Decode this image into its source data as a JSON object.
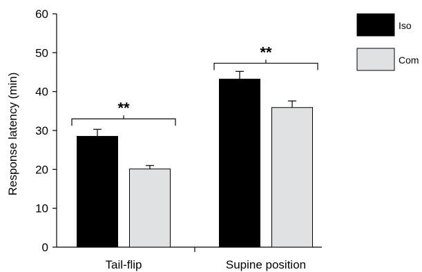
{
  "chart_data": {
    "type": "bar",
    "title": "",
    "xlabel": "",
    "ylabel": "Response latency (min)",
    "ylim": [
      0,
      60
    ],
    "yticks": [
      0,
      10,
      20,
      30,
      40,
      50,
      60
    ],
    "categories": [
      "Tail-flip",
      "Supine position"
    ],
    "series": [
      {
        "name": "Iso",
        "values": [
          28.5,
          43.2
        ],
        "errors": [
          1.8,
          2.0
        ],
        "color": "#000000"
      },
      {
        "name": "Com",
        "values": [
          20.1,
          35.9
        ],
        "errors": [
          0.9,
          1.7
        ],
        "color": "#e0e1e3"
      }
    ],
    "annotations": [
      {
        "category": "Tail-flip",
        "text": "**",
        "y": 33
      },
      {
        "category": "Supine position",
        "text": "**",
        "y": 47.3
      }
    ],
    "legend": "top-right",
    "grid": false
  }
}
